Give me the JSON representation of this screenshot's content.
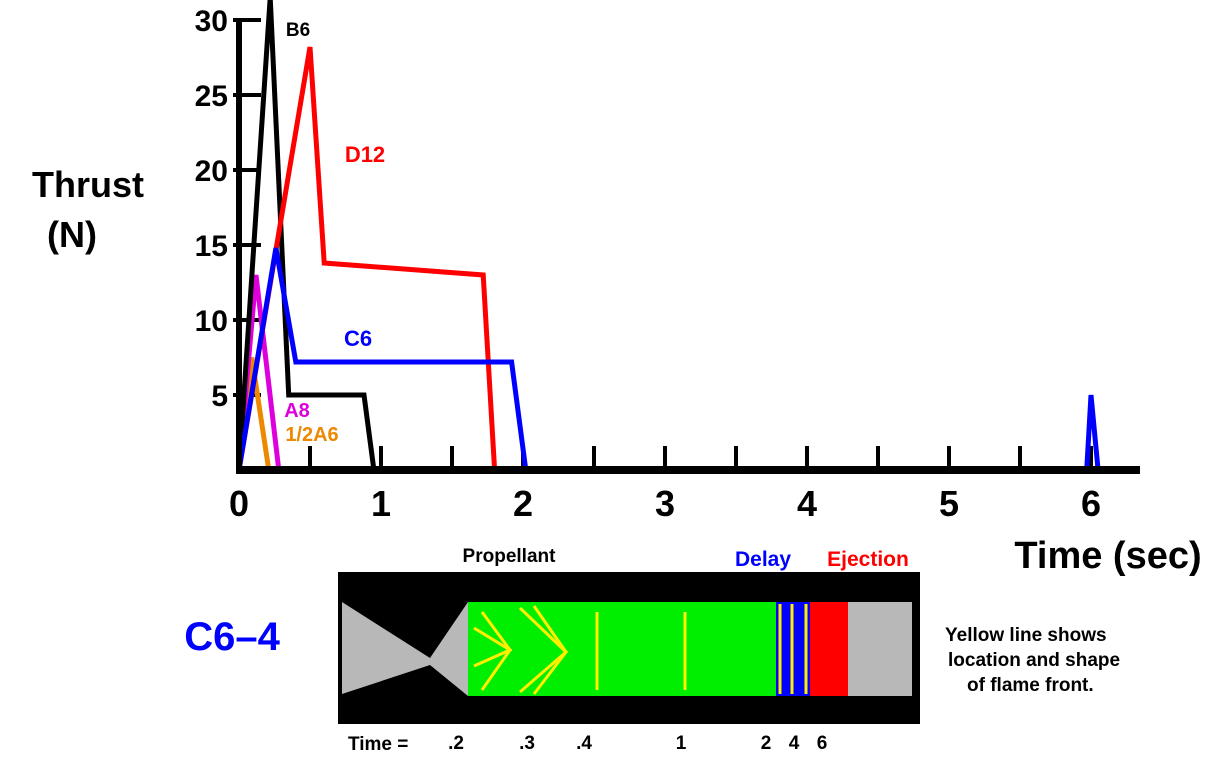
{
  "chart_data": {
    "type": "line",
    "ylabel_line1": "Thrust",
    "ylabel_line2": "(N)",
    "xlabel": "Time (sec)",
    "xlim": [
      0,
      6.3
    ],
    "ylim": [
      0,
      31
    ],
    "x_ticks": [
      "0",
      "1",
      "2",
      "3",
      "4",
      "5",
      "6"
    ],
    "x_tick_values": [
      0,
      1,
      2,
      3,
      4,
      5,
      6
    ],
    "y_ticks": [
      "5",
      "10",
      "15",
      "20",
      "25",
      "30"
    ],
    "y_tick_values": [
      5,
      10,
      15,
      20,
      25,
      30
    ],
    "grid": false,
    "series": [
      {
        "name": "B6",
        "color": "#000000",
        "x": [
          0,
          0.22,
          0.35,
          0.88,
          0.95
        ],
        "y": [
          0,
          31.5,
          5.0,
          5.0,
          0
        ]
      },
      {
        "name": "D12",
        "color": "#ff0000",
        "x": [
          0,
          0.5,
          0.6,
          1.72,
          1.8
        ],
        "y": [
          0,
          28.2,
          13.8,
          13.0,
          0
        ]
      },
      {
        "name": "C6",
        "color": "#0000ff",
        "x": [
          0,
          0.26,
          0.4,
          1.92,
          2.02,
          5.97,
          6.0,
          6.05
        ],
        "y": [
          0,
          14.8,
          7.2,
          7.2,
          0,
          0,
          5.0,
          0
        ]
      },
      {
        "name": "A8",
        "color": "#dd00dd",
        "x": [
          0,
          0.12,
          0.28
        ],
        "y": [
          0,
          13.0,
          0
        ]
      },
      {
        "name": "1/2A6",
        "color": "#ee8800",
        "x": [
          0,
          0.09,
          0.21
        ],
        "y": [
          0,
          7.5,
          0
        ]
      }
    ]
  },
  "diagram": {
    "engine_label": "C6–4",
    "propellant_label": "Propellant",
    "delay_label": "Delay",
    "ejection_label": "Ejection",
    "time_prefix": "Time =",
    "time_marks": [
      ".2",
      ".3",
      ".4",
      "1",
      "2",
      "4",
      "6"
    ],
    "note_lines": [
      "Yellow line shows",
      "location and shape",
      "of flame front."
    ],
    "colors": {
      "casing": "#000000",
      "nozzle": "#b8b8b8",
      "propellant": "#00ee00",
      "flame_front": "#ffee00",
      "delay": "#0000ff",
      "ejection": "#ff0000",
      "delay_text": "#0000ff",
      "ejection_text": "#ff0000",
      "engine_text": "#0000ff"
    }
  }
}
